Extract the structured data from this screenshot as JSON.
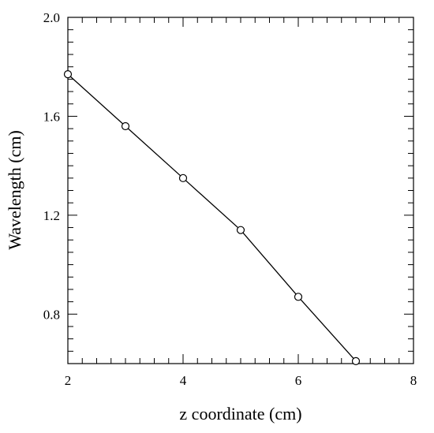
{
  "chart_data": {
    "type": "line",
    "title": "",
    "xlabel": "z coordinate (cm)",
    "ylabel": "Wavelength (cm)",
    "xlim": [
      2,
      8
    ],
    "ylim": [
      0.6,
      2.0
    ],
    "x_ticks": [
      2,
      4,
      6,
      8
    ],
    "x_tick_labels": [
      "2",
      "4",
      "6",
      "8"
    ],
    "y_ticks": [
      0.8,
      1.2,
      1.6,
      2.0
    ],
    "y_tick_labels": [
      "0.8",
      "1.2",
      "1.6",
      "2.0"
    ],
    "grid": false,
    "legend": "none",
    "marker": "open-circle",
    "line_color": "#000000",
    "series": [
      {
        "x": [
          2,
          3,
          4,
          5,
          6,
          7
        ],
        "y": [
          1.77,
          1.56,
          1.35,
          1.14,
          0.87,
          0.61
        ]
      }
    ]
  }
}
